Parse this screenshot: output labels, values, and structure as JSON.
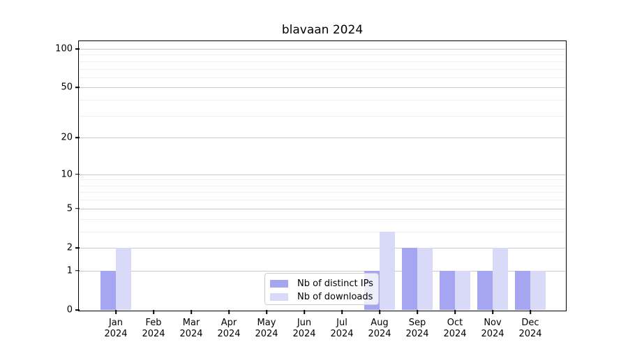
{
  "chart_data": {
    "type": "bar",
    "title": "blavaan 2024",
    "scale": "log1p",
    "x_tick_labels": [
      [
        "Jan",
        "2024"
      ],
      [
        "Feb",
        "2024"
      ],
      [
        "Mar",
        "2024"
      ],
      [
        "Apr",
        "2024"
      ],
      [
        "May",
        "2024"
      ],
      [
        "Jun",
        "2024"
      ],
      [
        "Jul",
        "2024"
      ],
      [
        "Aug",
        "2024"
      ],
      [
        "Sep",
        "2024"
      ],
      [
        "Oct",
        "2024"
      ],
      [
        "Nov",
        "2024"
      ],
      [
        "Dec",
        "2024"
      ]
    ],
    "series": [
      {
        "name": "Nb of distinct IPs",
        "color": "#a5a5f1",
        "values": [
          1,
          0,
          0,
          0,
          0,
          0,
          0,
          1,
          2,
          1,
          1,
          1
        ]
      },
      {
        "name": "Nb of downloads",
        "color": "#d9d9f8",
        "values": [
          2,
          0,
          0,
          0,
          0,
          0,
          0,
          3,
          2,
          1,
          2,
          1
        ]
      }
    ],
    "y_major_ticks": [
      0,
      1,
      2,
      5,
      10,
      20,
      50,
      100
    ],
    "y_minor_gridlines": [
      3,
      4,
      6,
      7,
      8,
      9,
      30,
      40,
      60,
      70,
      80,
      90
    ],
    "ylim": [
      0,
      100
    ],
    "grid": "horizontal",
    "legend_position": "bottom-center"
  }
}
